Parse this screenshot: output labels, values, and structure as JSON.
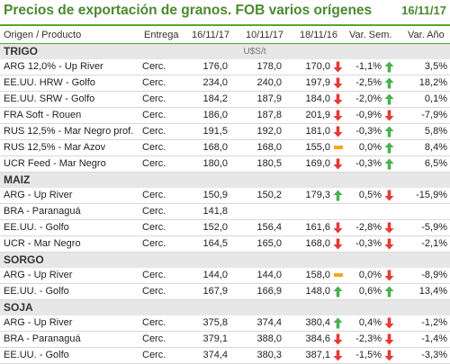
{
  "header": {
    "title": "Precios de exportación de granos. FOB varios orígenes",
    "date": "16/11/17"
  },
  "columns": {
    "origin": "Origen / Producto",
    "delivery": "Entrega",
    "d1": "16/11/17",
    "d2": "10/11/17",
    "d3": "18/11/16",
    "var_week": "Var. Sem.",
    "var_year": "Var. Año"
  },
  "colors": {
    "accent": "#4a8a2f",
    "up": "#4caf50",
    "down": "#e53935",
    "flat": "#f5a623"
  },
  "sections": [
    {
      "name": "TRIGO",
      "unit": "U$S/t",
      "rows": [
        {
          "name": "ARG 12,0% - Up River",
          "delivery": "Cerc.",
          "d1": "176,0",
          "d2": "178,0",
          "d3": "170,0",
          "week_dir": "down",
          "week": "-1,1%",
          "year_dir": "up",
          "year": "3,5%"
        },
        {
          "name": "EE.UU. HRW - Golfo",
          "delivery": "Cerc.",
          "d1": "234,0",
          "d2": "240,0",
          "d3": "197,9",
          "week_dir": "down",
          "week": "-2,5%",
          "year_dir": "up",
          "year": "18,2%"
        },
        {
          "name": "EE.UU. SRW - Golfo",
          "delivery": "Cerc.",
          "d1": "184,2",
          "d2": "187,9",
          "d3": "184,0",
          "week_dir": "down",
          "week": "-2,0%",
          "year_dir": "up",
          "year": "0,1%"
        },
        {
          "name": "FRA Soft - Rouen",
          "delivery": "Cerc.",
          "d1": "186,0",
          "d2": "187,8",
          "d3": "201,9",
          "week_dir": "down",
          "week": "-0,9%",
          "year_dir": "down",
          "year": "-7,9%"
        },
        {
          "name": "RUS 12,5% - Mar Negro prof.",
          "delivery": "Cerc.",
          "d1": "191,5",
          "d2": "192,0",
          "d3": "181,0",
          "week_dir": "down",
          "week": "-0,3%",
          "year_dir": "up",
          "year": "5,8%"
        },
        {
          "name": "RUS 12,5% - Mar Azov",
          "delivery": "Cerc.",
          "d1": "168,0",
          "d2": "168,0",
          "d3": "155,0",
          "week_dir": "flat",
          "week": "0,0%",
          "year_dir": "up",
          "year": "8,4%"
        },
        {
          "name": "UCR Feed - Mar Negro",
          "delivery": "Cerc.",
          "d1": "180,0",
          "d2": "180,5",
          "d3": "169,0",
          "week_dir": "down",
          "week": "-0,3%",
          "year_dir": "up",
          "year": "6,5%"
        }
      ]
    },
    {
      "name": "MAIZ",
      "unit": "",
      "rows": [
        {
          "name": "ARG - Up River",
          "delivery": "Cerc.",
          "d1": "150,9",
          "d2": "150,2",
          "d3": "179,3",
          "week_dir": "up",
          "week": "0,5%",
          "year_dir": "down",
          "year": "-15,9%"
        },
        {
          "name": "BRA - Paranaguá",
          "delivery": "Cerc.",
          "d1": "141,8",
          "d2": "",
          "d3": "",
          "week_dir": "",
          "week": "",
          "year_dir": "",
          "year": ""
        },
        {
          "name": "EE.UU. - Golfo",
          "delivery": "Cerc.",
          "d1": "152,0",
          "d2": "156,4",
          "d3": "161,6",
          "week_dir": "down",
          "week": "-2,8%",
          "year_dir": "down",
          "year": "-5,9%"
        },
        {
          "name": "UCR - Mar Negro",
          "delivery": "Cerc.",
          "d1": "164,5",
          "d2": "165,0",
          "d3": "168,0",
          "week_dir": "down",
          "week": "-0,3%",
          "year_dir": "down",
          "year": "-2,1%"
        }
      ]
    },
    {
      "name": "SORGO",
      "unit": "",
      "rows": [
        {
          "name": "ARG - Up River",
          "delivery": "Cerc.",
          "d1": "144,0",
          "d2": "144,0",
          "d3": "158,0",
          "week_dir": "flat",
          "week": "0,0%",
          "year_dir": "down",
          "year": "-8,9%"
        },
        {
          "name": "EE.UU. - Golfo",
          "delivery": "Cerc.",
          "d1": "167,9",
          "d2": "166,9",
          "d3": "148,0",
          "week_dir": "up",
          "week": "0,6%",
          "year_dir": "up",
          "year": "13,4%"
        }
      ]
    },
    {
      "name": "SOJA",
      "unit": "",
      "rows": [
        {
          "name": "ARG - Up River",
          "delivery": "Cerc.",
          "d1": "375,8",
          "d2": "374,4",
          "d3": "380,4",
          "week_dir": "up",
          "week": "0,4%",
          "year_dir": "down",
          "year": "-1,2%"
        },
        {
          "name": "BRA - Paranaguá",
          "delivery": "Cerc.",
          "d1": "379,1",
          "d2": "388,0",
          "d3": "384,6",
          "week_dir": "down",
          "week": "-2,3%",
          "year_dir": "down",
          "year": "-1,4%"
        },
        {
          "name": "EE.UU. - Golfo",
          "delivery": "Cerc.",
          "d1": "374,4",
          "d2": "380,3",
          "d3": "387,1",
          "week_dir": "down",
          "week": "-1,5%",
          "year_dir": "down",
          "year": "-3,3%"
        }
      ]
    }
  ]
}
